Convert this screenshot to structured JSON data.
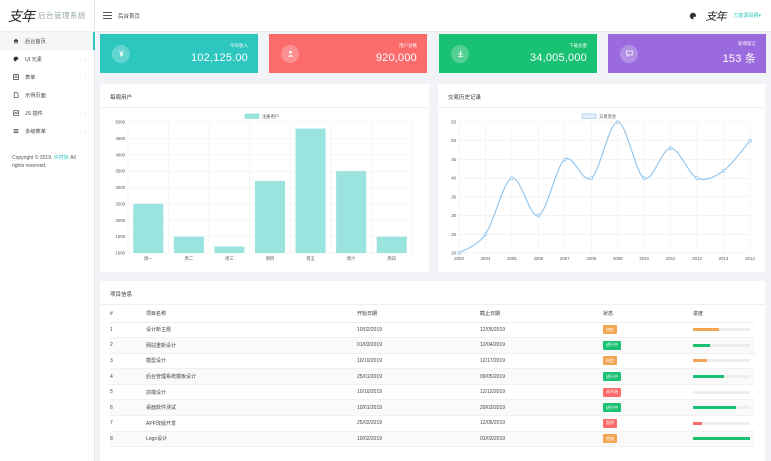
{
  "app": {
    "logo_mark": "支年",
    "title": "后台管理系统"
  },
  "header": {
    "breadcrumb": "后台首页",
    "avatar_mark": "支年",
    "user": "刀客源码网▾"
  },
  "sidebar": {
    "items": [
      {
        "label": "后台首页",
        "icon": "home-icon",
        "active": true
      },
      {
        "label": "UI 元素",
        "icon": "palette-icon",
        "chevron": "›"
      },
      {
        "label": "表单",
        "icon": "form-icon",
        "chevron": "›"
      },
      {
        "label": "示例页面",
        "icon": "file-icon",
        "chevron": "›"
      },
      {
        "label": "JS 插件",
        "icon": "chart-icon",
        "chevron": "›"
      },
      {
        "label": "多级菜单",
        "icon": "list-icon",
        "chevron": "›"
      }
    ],
    "copyright_prefix": "Copyright © 2019.",
    "copyright_link": "许符际",
    "copyright_suffix": "All rights reserved."
  },
  "stats": [
    {
      "label": "今日收入",
      "value": "102,125.00",
      "color": "#2ec7c0",
      "icon": "yen-icon"
    },
    {
      "label": "用户总数",
      "value": "920,000",
      "color": "#fb6b6b",
      "icon": "user-icon"
    },
    {
      "label": "下载总量",
      "value": "34,005,000",
      "color": "#19c173",
      "icon": "download-icon"
    },
    {
      "label": "新增留言",
      "value": "153 条",
      "color": "#9b6ade",
      "icon": "comment-icon"
    }
  ],
  "panels": {
    "weekly_title": "每周用户",
    "history_title": "交易历史记录",
    "project_title": "项目信息"
  },
  "chart_data": [
    {
      "type": "bar",
      "title": "每周用户",
      "legend": [
        "注册用户"
      ],
      "legend_position": "top-center",
      "categories": [
        "周一",
        "周二",
        "周三",
        "周四",
        "周五",
        "周六",
        "周日"
      ],
      "series": [
        {
          "name": "注册用户",
          "values": [
            2500,
            1500,
            1200,
            3200,
            4800,
            3500,
            1500
          ]
        }
      ],
      "ylim": [
        1000,
        5000
      ],
      "yticks": [
        1000,
        1500,
        2000,
        2500,
        3000,
        3500,
        4000,
        4500,
        5000
      ],
      "color": "#9be3de",
      "grid": true
    },
    {
      "type": "line",
      "title": "交易历史记录",
      "legend": [
        "交易资金"
      ],
      "legend_position": "top-center",
      "x": [
        2003,
        2004,
        2005,
        2006,
        2007,
        2008,
        2009,
        2010,
        2011,
        2012,
        2013,
        2014
      ],
      "series": [
        {
          "name": "交易资金",
          "values": [
            20,
            25,
            40,
            30,
            45,
            40,
            55,
            40,
            48,
            40,
            42,
            50
          ]
        }
      ],
      "ylim": [
        20,
        55
      ],
      "yticks": [
        20,
        25,
        30,
        35,
        40,
        45,
        50,
        55
      ],
      "color": "#8ec3ec",
      "smooth": true,
      "grid": true
    }
  ],
  "table": {
    "headers": [
      "#",
      "项目名称",
      "开始日期",
      "截止日期",
      "状态",
      "进度"
    ],
    "rows": [
      {
        "n": "1",
        "name": "设计新主题",
        "start": "10/02/2019",
        "end": "12/05/2019",
        "status": "待定",
        "status_color": "#f2a654",
        "progress": 0.45,
        "bar_color": "#f2a654"
      },
      {
        "n": "2",
        "name": "网站重新设计",
        "start": "01/03/2019",
        "end": "12/04/2019",
        "status": "进行中",
        "status_color": "#19c173",
        "progress": 0.3,
        "bar_color": "#19c173"
      },
      {
        "n": "3",
        "name": "模型设计",
        "start": "10/10/2019",
        "end": "12/17/2019",
        "status": "待定",
        "status_color": "#f2a654",
        "progress": 0.25,
        "bar_color": "#f2a654"
      },
      {
        "n": "4",
        "name": "后台管理系统模板设计",
        "start": "25/01/2019",
        "end": "09/05/2019",
        "status": "进行中",
        "status_color": "#19c173",
        "progress": 0.55,
        "bar_color": "#19c173"
      },
      {
        "n": "5",
        "name": "前端设计",
        "start": "10/10/2019",
        "end": "12/12/2019",
        "status": "未开始",
        "status_color": "#fb6b6b",
        "progress": 0,
        "bar_color": "#fb6b6b"
      },
      {
        "n": "6",
        "name": "桌面软件测试",
        "start": "10/01/2019",
        "end": "29/03/2019",
        "status": "进行中",
        "status_color": "#19c173",
        "progress": 0.75,
        "bar_color": "#19c173"
      },
      {
        "n": "7",
        "name": "APP改版开发",
        "start": "25/02/2019",
        "end": "12/05/2019",
        "status": "暂停",
        "status_color": "#fb6b6b",
        "progress": 0.15,
        "bar_color": "#fb6b6b"
      },
      {
        "n": "8",
        "name": "Logo设计",
        "start": "10/02/2019",
        "end": "01/03/2019",
        "status": "完成",
        "status_color": "#f2a654",
        "progress": 1.0,
        "bar_color": "#19c173"
      }
    ]
  }
}
